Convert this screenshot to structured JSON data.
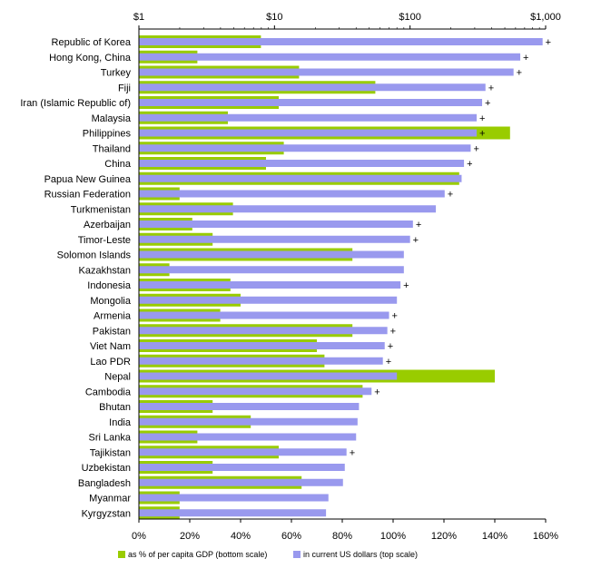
{
  "chart_data": {
    "type": "bar",
    "orientation": "horizontal",
    "categories": [
      "Republic of Korea",
      "Hong Kong, China",
      "Turkey",
      "Fiji",
      "Iran (Islamic Republic of)",
      "Malaysia",
      "Philippines",
      "Thailand",
      "China",
      "Papua New Guinea",
      "Russian Federation",
      "Turkmenistan",
      "Azerbaijan",
      "Timor-Leste",
      "Solomon Islands",
      "Kazakhstan",
      "Indonesia",
      "Mongolia",
      "Armenia",
      "Pakistan",
      "Viet Nam",
      "Lao PDR",
      "Nepal",
      "Cambodia",
      "Bhutan",
      "India",
      "Sri Lanka",
      "Tajikistan",
      "Uzbekistan",
      "Bangladesh",
      "Myanmar",
      "Kyrgyzstan"
    ],
    "series": [
      {
        "name": "in current US dollars (top scale)",
        "color": "#9999ee",
        "axis": "top",
        "scale": "log",
        "values": [
          950,
          650,
          580,
          360,
          340,
          310,
          310,
          280,
          250,
          240,
          180,
          155,
          105,
          100,
          90,
          90,
          85,
          80,
          70,
          68,
          65,
          63,
          80,
          52,
          42,
          41,
          40,
          34,
          33,
          32,
          25,
          24
        ],
        "plus": [
          true,
          true,
          true,
          true,
          true,
          true,
          true,
          true,
          true,
          false,
          true,
          false,
          true,
          true,
          false,
          false,
          true,
          false,
          true,
          true,
          true,
          true,
          false,
          true,
          false,
          false,
          false,
          true,
          false,
          false,
          false,
          false
        ]
      },
      {
        "name": "as % of per capita GDP (bottom scale)",
        "color": "#99cc00",
        "axis": "bottom",
        "scale": "linear",
        "values": [
          48,
          23,
          63,
          93,
          55,
          35,
          146,
          57,
          50,
          126,
          16,
          37,
          21,
          29,
          84,
          12,
          36,
          40,
          32,
          84,
          70,
          73,
          140,
          88,
          29,
          44,
          23,
          55,
          29,
          64,
          16,
          16
        ]
      }
    ],
    "top_axis": {
      "ticks": [
        1,
        10,
        100,
        1000
      ],
      "tick_labels": [
        "$1",
        "$10",
        "$100",
        "$1,000"
      ]
    },
    "bottom_axis": {
      "ticks": [
        0,
        20,
        40,
        60,
        80,
        100,
        120,
        140,
        160
      ],
      "tick_labels": [
        "0%",
        "20%",
        "40%",
        "60%",
        "80%",
        "100%",
        "120%",
        "140%",
        "160%"
      ],
      "xlim": [
        0,
        160
      ]
    },
    "plus_marker": "+",
    "legend": [
      {
        "label": "as % of per capita GDP (bottom scale)",
        "color": "#99cc00"
      },
      {
        "label": "in current US dollars (top scale)",
        "color": "#9999ee"
      }
    ],
    "legend_position": "bottom",
    "grid": false
  }
}
